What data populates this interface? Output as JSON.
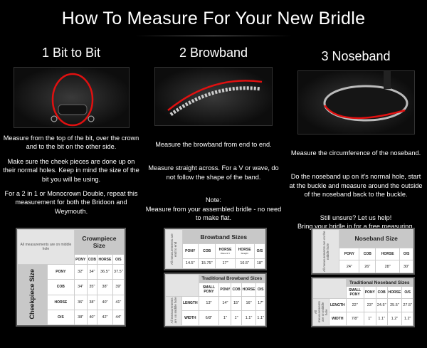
{
  "title": "How To Measure For Your New Bridle",
  "sections": [
    {
      "heading": "1 Bit to Bit",
      "paragraphs": [
        "Measure from the top of the bit, over the crown and to the bit on the other side.",
        "Make sure the cheek pieces are done up on their normal holes. Keep in mind the size of the bit you will be using.",
        "For a 2 in 1 or Monocrown Double, repeat this measurement for both the Bridoon and Weymouth."
      ]
    },
    {
      "heading": "2 Browband",
      "paragraphs": [
        "Measure the browband from end to end.",
        "Measure straight across. For a V or wave, do not follow the shape of the band.",
        "Note:\nMeasure from your assembled bridle - no need to make flat."
      ]
    },
    {
      "heading": "3 Noseband",
      "paragraphs": [
        "Measure the circumference of the noseband.",
        "Do the noseband up on it's normal hole, start at the buckle and measure around the outside of the noseband back to the buckle.",
        "Still unsure? Let us help!\nBring your bridle in for a free measuring."
      ]
    }
  ],
  "accent_color": "#e01010",
  "tables": {
    "crownpiece": {
      "title": "Crownpiece Size",
      "note": "All measurements are on middle hole",
      "side_title": "Cheekpiece Size",
      "columns": [
        "PONY",
        "COB",
        "HORSE",
        "O/S"
      ],
      "rows": [
        {
          "label": "PONY",
          "values": [
            "32\"",
            "34\"",
            "36.5\"",
            "37.5\""
          ]
        },
        {
          "label": "COB",
          "values": [
            "34\"",
            "35\"",
            "38\"",
            "39\""
          ]
        },
        {
          "label": "HORSE",
          "values": [
            "36\"",
            "38\"",
            "40\"",
            "41\""
          ]
        },
        {
          "label": "O/S",
          "values": [
            "38\"",
            "40\"",
            "42\"",
            "44\""
          ]
        }
      ]
    },
    "browband": {
      "title": "Browband Sizes",
      "note": "All measurements are end to end",
      "columns": [
        {
          "label": "PONY"
        },
        {
          "label": "COB"
        },
        {
          "label": "HORSE",
          "sub": "Wave & V"
        },
        {
          "label": "HORSE",
          "sub": "Straight"
        },
        {
          "label": "O/S"
        }
      ],
      "values": [
        "14.5\"",
        "15.75\"",
        "17\"",
        "16.5\"",
        "18\""
      ]
    },
    "traditional_browband": {
      "title": "Traditional Browband Sizes",
      "note": "All measurements are on middle hole",
      "columns": [
        "SMALL PONY",
        "PONY",
        "COB",
        "HORSE",
        "O/S"
      ],
      "rows": [
        {
          "label": "LENGTH",
          "values": [
            "13\"",
            "14\"",
            "15\"",
            "16\"",
            "17\""
          ]
        },
        {
          "label": "WIDTH",
          "values": [
            "6/8\"",
            "1\"",
            "1\"",
            "1.1\"",
            "1.1\""
          ]
        }
      ]
    },
    "noseband": {
      "title": "Noseband Size",
      "note": "All measurements are on the middle hole",
      "columns": [
        "PONY",
        "COB",
        "HORSE",
        "O/S"
      ],
      "values": [
        "24\"",
        "26\"",
        "28\"",
        "30\""
      ]
    },
    "traditional_noseband": {
      "title": "Traditional Noseband Sizes",
      "note": "All measurements are on middle hole",
      "columns": [
        "SMALL PONY",
        "PONY",
        "COB",
        "HORSE",
        "O/S"
      ],
      "rows": [
        {
          "label": "LENGTH",
          "values": [
            "22\"",
            "23\"",
            "24.5\"",
            "25.5\"",
            "27.5\""
          ]
        },
        {
          "label": "WIDTH",
          "values": [
            "7/8\"",
            "1\"",
            "1.1\"",
            "1.2\"",
            "1.2\""
          ]
        }
      ]
    }
  }
}
